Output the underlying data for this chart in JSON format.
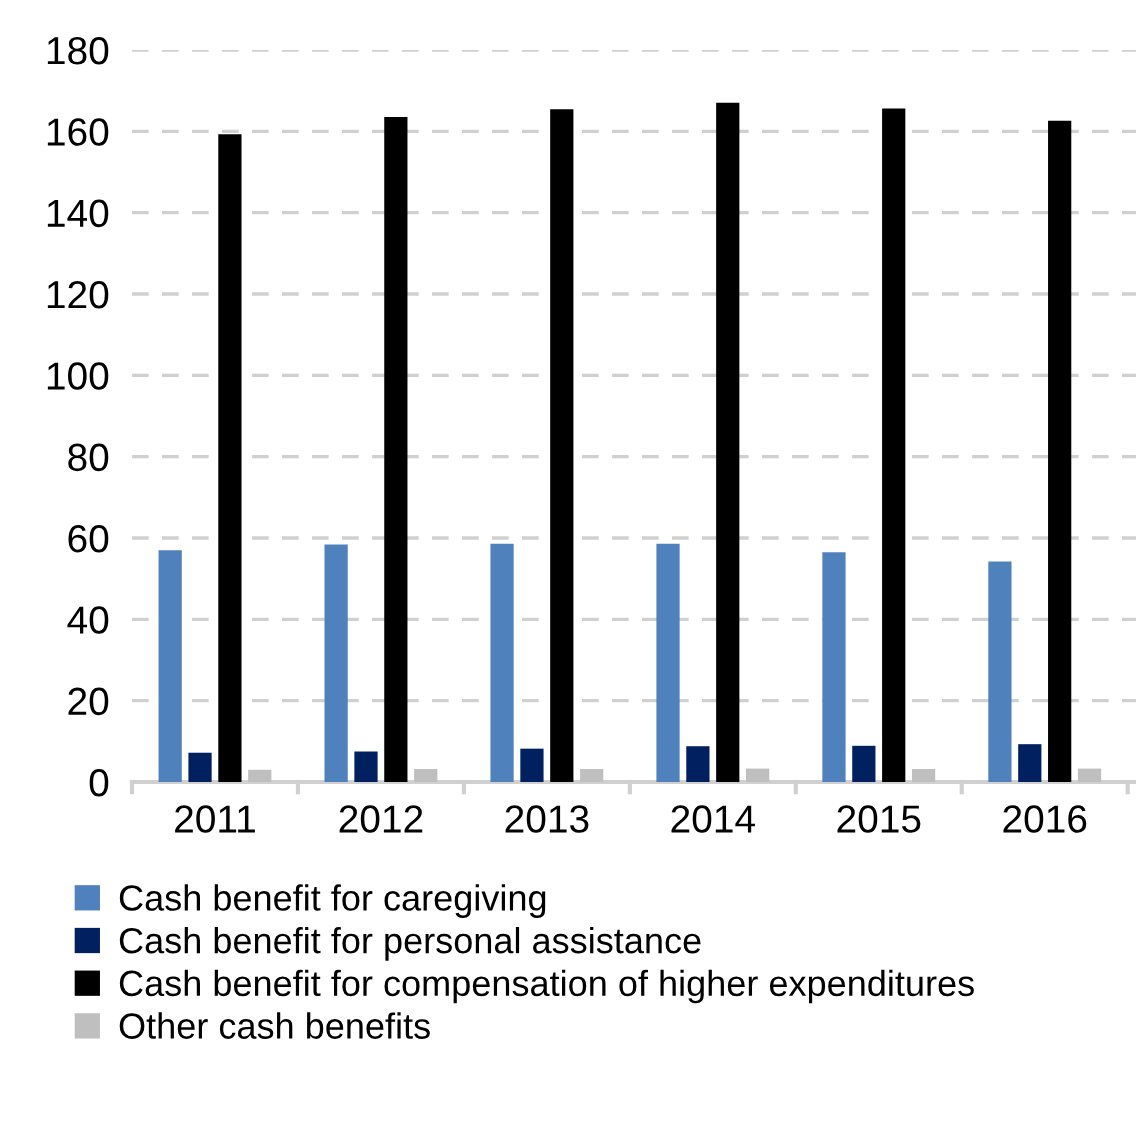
{
  "chart_data": {
    "type": "bar",
    "categories": [
      "2011",
      "2012",
      "2013",
      "2014",
      "2015",
      "2016"
    ],
    "series": [
      {
        "name": "Cash benefit for caregiving",
        "color": "#4f81bd",
        "values": [
          57.0,
          58.4,
          58.6,
          58.6,
          56.5,
          54.2
        ]
      },
      {
        "name": "Cash benefit for personal assistance",
        "color": "#002060",
        "values": [
          7.2,
          7.5,
          8.2,
          8.8,
          8.9,
          9.3
        ]
      },
      {
        "name": "Cash benefit for compensation of higher expenditures",
        "color": "#000000",
        "values": [
          159.3,
          163.5,
          165.4,
          167.0,
          165.6,
          162.6
        ]
      },
      {
        "name": "Other cash benefits",
        "color": "#bfbfbf",
        "values": [
          3.0,
          3.2,
          3.2,
          3.3,
          3.2,
          3.3
        ]
      }
    ],
    "ylim": [
      0,
      180
    ],
    "yticks": [
      0,
      20,
      40,
      60,
      80,
      100,
      120,
      140,
      160,
      180
    ],
    "grid": "y",
    "legend": "bottom"
  }
}
